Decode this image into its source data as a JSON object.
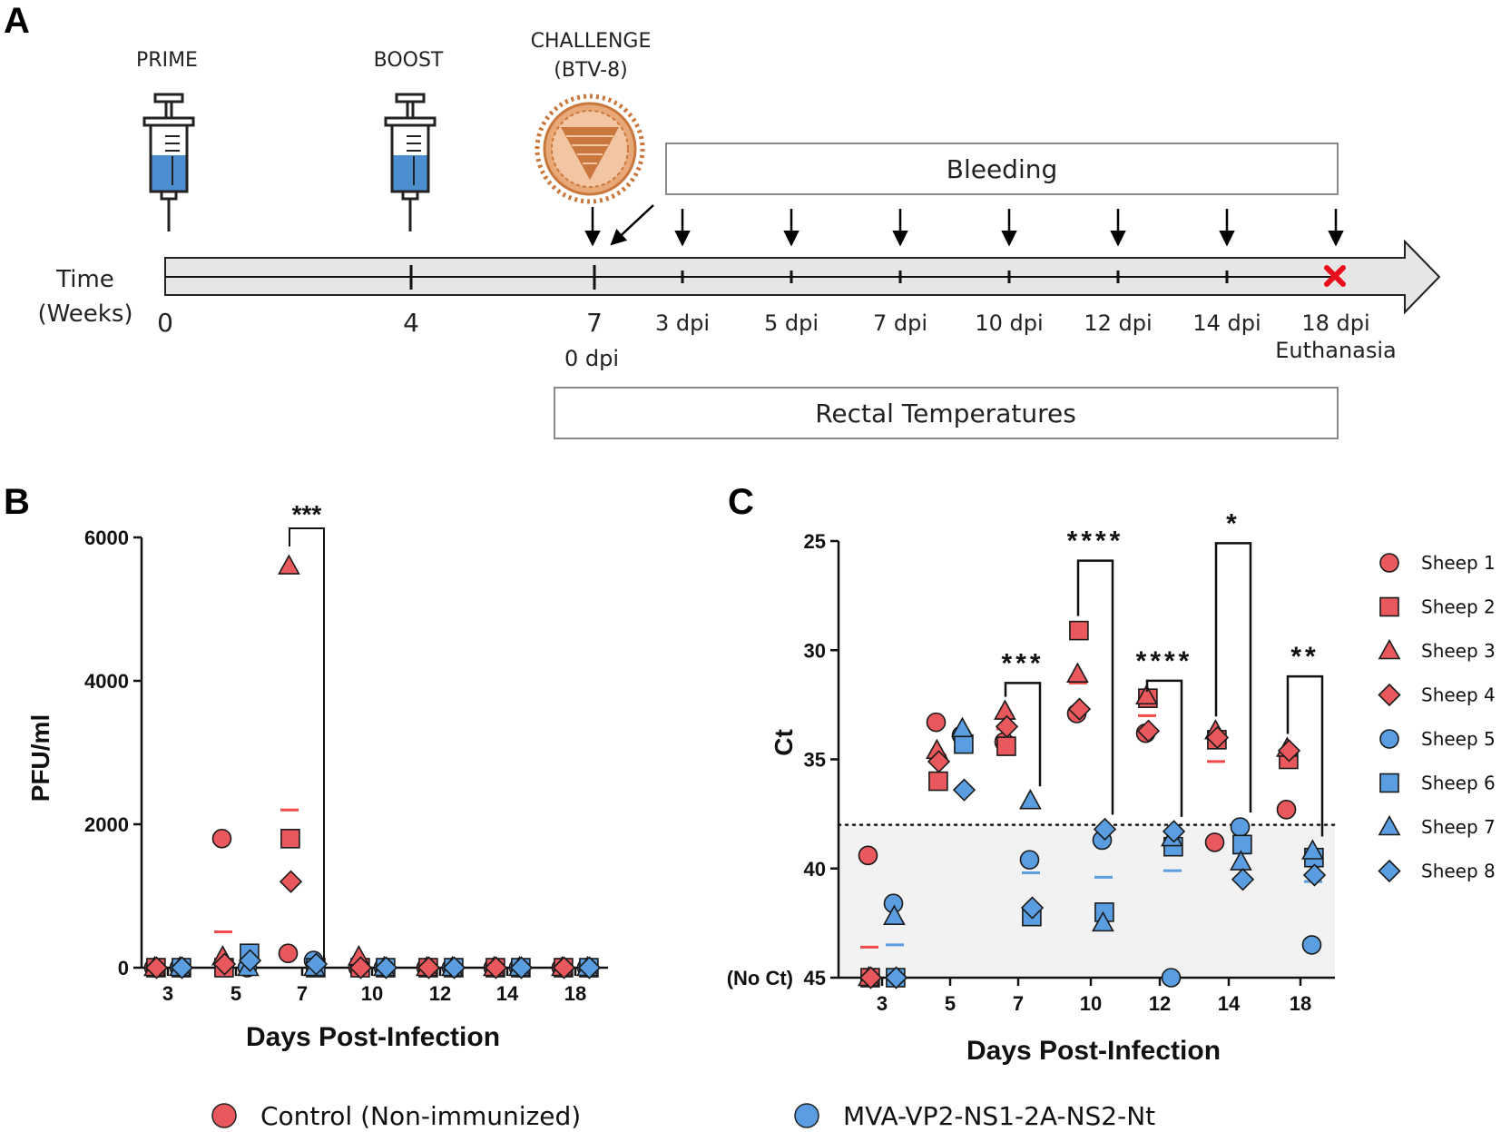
{
  "colors": {
    "control": "#e9585c",
    "mva": "#5a9de0",
    "control_mean": "#f04a4a",
    "mva_mean": "#5a9de0",
    "syringe_fluid": "#4c8ed0",
    "virus": "#c9773c",
    "euthanasia": "#e8101a",
    "shade": "#f2f2f2"
  },
  "panel_a": {
    "letter": "A",
    "prime_label": "PRIME",
    "boost_label": "BOOST",
    "challenge_label": "CHALLENGE",
    "challenge_strain": "(BTV-8)",
    "bleeding_label": "Bleeding",
    "rectal_label": "Rectal Temperatures",
    "time_label": "Time",
    "weeks_label": "(Weeks)",
    "week_ticks": [
      "0",
      "4",
      "7"
    ],
    "zero_dpi": "0 dpi",
    "dpi_ticks": [
      "3 dpi",
      "5 dpi",
      "7 dpi",
      "10 dpi",
      "12 dpi",
      "14 dpi",
      "18 dpi"
    ],
    "euthanasia_label": "Euthanasia",
    "icons": [
      "syringe-icon",
      "syringe-icon",
      "virus-icon",
      "euthanasia-cross-icon"
    ]
  },
  "panel_b": {
    "letter": "B",
    "chart_type": "scatter",
    "ylabel": "PFU/ml",
    "xlabel": "Days Post-Infection",
    "significance": [
      {
        "day": "7",
        "label": "***"
      }
    ]
  },
  "panel_c": {
    "letter": "C",
    "chart_type": "scatter",
    "ylabel": "Ct",
    "xlabel": "Days Post-Infection",
    "no_ct_label": "(No Ct)",
    "significance": [
      {
        "day": "7",
        "label": "***"
      },
      {
        "day": "10",
        "label": "****"
      },
      {
        "day": "12",
        "label": "****"
      },
      {
        "day": "14",
        "label": "*"
      },
      {
        "day": "18",
        "label": "**"
      }
    ],
    "legend": [
      {
        "label": "Sheep 1",
        "group": "control",
        "shape": "circle"
      },
      {
        "label": "Sheep 2",
        "group": "control",
        "shape": "square"
      },
      {
        "label": "Sheep 3",
        "group": "control",
        "shape": "triangle"
      },
      {
        "label": "Sheep 4",
        "group": "control",
        "shape": "diamond"
      },
      {
        "label": "Sheep 5",
        "group": "mva",
        "shape": "circle"
      },
      {
        "label": "Sheep 6",
        "group": "mva",
        "shape": "square"
      },
      {
        "label": "Sheep 7",
        "group": "mva",
        "shape": "triangle"
      },
      {
        "label": "Sheep 8",
        "group": "mva",
        "shape": "diamond"
      }
    ]
  },
  "bottom_legend": {
    "control_label": "Control (Non-immunized)",
    "mva_label": "MVA-VP2-NS1-2A-NS2-Nt"
  },
  "chart_data": [
    {
      "panel": "B",
      "type": "scatter",
      "title": "",
      "xlabel": "Days Post-Infection",
      "ylabel": "PFU/ml",
      "categories": [
        "3",
        "5",
        "7",
        "10",
        "12",
        "14",
        "18"
      ],
      "ylim": [
        0,
        6000
      ],
      "yticks": [
        0,
        2000,
        4000,
        6000
      ],
      "series": [
        {
          "name": "Control (Non-immunized)",
          "group": "control",
          "sheep": [
            {
              "shape": "circle",
              "values": [
                0,
                1800,
                200,
                0,
                0,
                0,
                0
              ]
            },
            {
              "shape": "square",
              "values": [
                0,
                0,
                1800,
                0,
                0,
                0,
                0
              ]
            },
            {
              "shape": "triangle",
              "values": [
                0,
                150,
                5600,
                150,
                0,
                0,
                0
              ]
            },
            {
              "shape": "diamond",
              "values": [
                0,
                50,
                1200,
                0,
                0,
                0,
                0
              ]
            }
          ],
          "means": [
            0,
            500,
            2200,
            40,
            0,
            0,
            0
          ]
        },
        {
          "name": "MVA-VP2-NS1-2A-NS2-Nt",
          "group": "mva",
          "sheep": [
            {
              "shape": "circle",
              "values": [
                0,
                0,
                100,
                0,
                0,
                0,
                0
              ]
            },
            {
              "shape": "square",
              "values": [
                0,
                200,
                0,
                0,
                0,
                0,
                0
              ]
            },
            {
              "shape": "triangle",
              "values": [
                0,
                0,
                0,
                0,
                0,
                0,
                0
              ]
            },
            {
              "shape": "diamond",
              "values": [
                0,
                100,
                50,
                0,
                0,
                0,
                0
              ]
            }
          ],
          "means": [
            0,
            80,
            40,
            0,
            0,
            0,
            0
          ]
        }
      ]
    },
    {
      "panel": "C",
      "type": "scatter",
      "title": "",
      "xlabel": "Days Post-Infection",
      "ylabel": "Ct",
      "categories": [
        "3",
        "5",
        "7",
        "10",
        "12",
        "14",
        "18"
      ],
      "ylim": [
        45,
        25
      ],
      "y_inverted": true,
      "yticks": [
        25,
        30,
        35,
        40,
        45
      ],
      "ytick_labels": [
        "25",
        "30",
        "35",
        "40",
        "(No Ct) 45"
      ],
      "cutoff_ct": 38,
      "series": [
        {
          "name": "Control (Non-immunized)",
          "group": "control",
          "sheep": [
            {
              "label": "Sheep 1",
              "shape": "circle",
              "values": [
                39.4,
                33.3,
                34.2,
                32.9,
                33.8,
                38.8,
                37.3
              ]
            },
            {
              "label": "Sheep 2",
              "shape": "square",
              "values": [
                45,
                36.0,
                34.4,
                29.1,
                32.2,
                34.1,
                35.0
              ]
            },
            {
              "label": "Sheep 3",
              "shape": "triangle",
              "values": [
                45,
                34.6,
                32.8,
                31.1,
                32.1,
                33.7,
                34.5
              ]
            },
            {
              "label": "Sheep 4",
              "shape": "diamond",
              "values": [
                45,
                35.1,
                33.5,
                32.7,
                33.7,
                34.0,
                34.6
              ]
            }
          ],
          "means": [
            43.6,
            34.8,
            33.6,
            31.5,
            33.0,
            35.1,
            35.2
          ]
        },
        {
          "name": "MVA-VP2-NS1-2A-NS2-Nt",
          "group": "mva",
          "sheep": [
            {
              "label": "Sheep 5",
              "shape": "circle",
              "values": [
                41.6,
                33.9,
                39.6,
                38.7,
                45,
                38.1,
                43.5
              ]
            },
            {
              "label": "Sheep 6",
              "shape": "square",
              "values": [
                45,
                34.3,
                42.2,
                42.0,
                39.0,
                38.9,
                39.5
              ]
            },
            {
              "label": "Sheep 7",
              "shape": "triangle",
              "values": [
                42.2,
                33.6,
                36.9,
                42.5,
                38.6,
                39.7,
                39.2
              ]
            },
            {
              "label": "Sheep 8",
              "shape": "diamond",
              "values": [
                45,
                36.4,
                41.8,
                38.2,
                38.3,
                40.5,
                40.3
              ]
            }
          ],
          "means": [
            43.5,
            34.5,
            40.2,
            40.4,
            40.1,
            39.3,
            40.6
          ]
        }
      ]
    }
  ]
}
